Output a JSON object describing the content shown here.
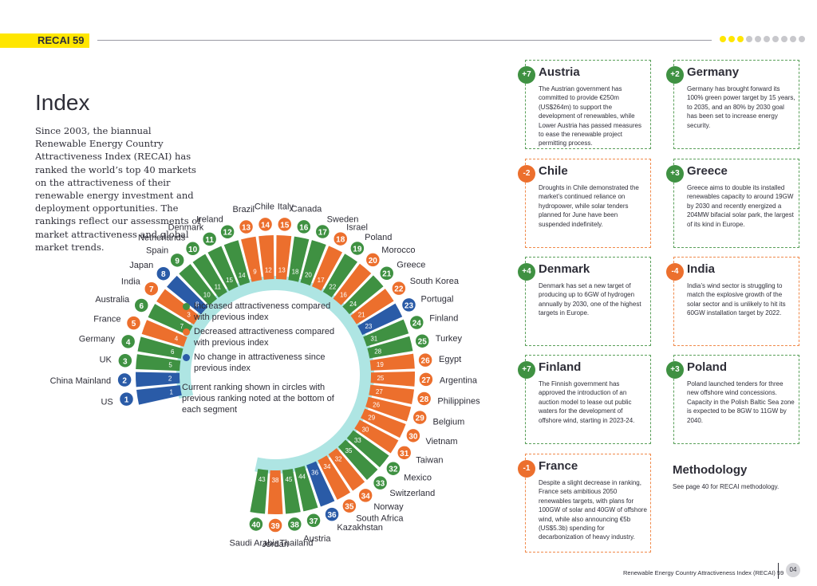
{
  "header": {
    "tag": "RECAI 59"
  },
  "page": {
    "title": "Index",
    "intro": "Since 2003, the biannual Renewable Energy Country Attractiveness Index (RECAI) has ranked the world’s top 40 markets on the attractiveness of their renewable energy investment and deployment opportunities. The rankings reflect our assessments of market attractiveness and global market trends."
  },
  "legend": {
    "increased": "Increased attractiveness compared with previous index",
    "decreased": "Decreased attractiveness compared with previous index",
    "nochange": "No change in attractiveness since previous index",
    "note": "Current ranking shown in circles with previous ranking noted at the bottom of each segment"
  },
  "colors": {
    "green": "#3f9142",
    "orange": "#ec6f2d",
    "blue": "#2a5ba7",
    "teal": "#aee5e3",
    "yellow": "#ffe600"
  },
  "ranking": [
    {
      "rank": 1,
      "country": "US",
      "prev": 1,
      "status": "blue"
    },
    {
      "rank": 2,
      "country": "China Mainland",
      "prev": 2,
      "status": "blue"
    },
    {
      "rank": 3,
      "country": "UK",
      "prev": 5,
      "status": "green"
    },
    {
      "rank": 4,
      "country": "Germany",
      "prev": 6,
      "status": "green"
    },
    {
      "rank": 5,
      "country": "France",
      "prev": 4,
      "status": "orange"
    },
    {
      "rank": 6,
      "country": "Australia",
      "prev": 7,
      "status": "green"
    },
    {
      "rank": 7,
      "country": "India",
      "prev": 3,
      "status": "orange"
    },
    {
      "rank": 8,
      "country": "Japan",
      "prev": 8,
      "status": "blue"
    },
    {
      "rank": 9,
      "country": "Spain",
      "prev": 10,
      "status": "green"
    },
    {
      "rank": 10,
      "country": "Netherlands",
      "prev": 11,
      "status": "green"
    },
    {
      "rank": 11,
      "country": "Denmark",
      "prev": 15,
      "status": "green"
    },
    {
      "rank": 12,
      "country": "Ireland",
      "prev": 14,
      "status": "green"
    },
    {
      "rank": 13,
      "country": "Brazil",
      "prev": 9,
      "status": "orange"
    },
    {
      "rank": 14,
      "country": "Chile",
      "prev": 12,
      "status": "orange"
    },
    {
      "rank": 15,
      "country": "Italy",
      "prev": 13,
      "status": "orange"
    },
    {
      "rank": 16,
      "country": "Canada",
      "prev": 18,
      "status": "green"
    },
    {
      "rank": 17,
      "country": "Sweden",
      "prev": 20,
      "status": "green"
    },
    {
      "rank": 18,
      "country": "Israel",
      "prev": 17,
      "status": "orange"
    },
    {
      "rank": 19,
      "country": "Poland",
      "prev": 22,
      "status": "green"
    },
    {
      "rank": 20,
      "country": "Morocco",
      "prev": 16,
      "status": "orange"
    },
    {
      "rank": 21,
      "country": "Greece",
      "prev": 24,
      "status": "green"
    },
    {
      "rank": 22,
      "country": "South Korea",
      "prev": 21,
      "status": "orange"
    },
    {
      "rank": 23,
      "country": "Portugal",
      "prev": 23,
      "status": "blue"
    },
    {
      "rank": 24,
      "country": "Finland",
      "prev": 31,
      "status": "green"
    },
    {
      "rank": 25,
      "country": "Turkey",
      "prev": 28,
      "status": "green"
    },
    {
      "rank": 26,
      "country": "Egypt",
      "prev": 19,
      "status": "orange"
    },
    {
      "rank": 27,
      "country": "Argentina",
      "prev": 25,
      "status": "orange"
    },
    {
      "rank": 28,
      "country": "Philippines",
      "prev": 27,
      "status": "orange"
    },
    {
      "rank": 29,
      "country": "Belgium",
      "prev": 26,
      "status": "orange"
    },
    {
      "rank": 30,
      "country": "Vietnam",
      "prev": 29,
      "status": "orange"
    },
    {
      "rank": 31,
      "country": "Taiwan",
      "prev": 30,
      "status": "orange"
    },
    {
      "rank": 32,
      "country": "Mexico",
      "prev": 33,
      "status": "green"
    },
    {
      "rank": 33,
      "country": "Switzerland",
      "prev": 35,
      "status": "green"
    },
    {
      "rank": 34,
      "country": "Norway",
      "prev": 32,
      "status": "orange"
    },
    {
      "rank": 35,
      "country": "South Africa",
      "prev": 34,
      "status": "orange"
    },
    {
      "rank": 36,
      "country": "Kazakhstan",
      "prev": 36,
      "status": "blue"
    },
    {
      "rank": 37,
      "country": "Austria",
      "prev": 44,
      "status": "green"
    },
    {
      "rank": 38,
      "country": "Thailand",
      "prev": 45,
      "status": "green"
    },
    {
      "rank": 39,
      "country": "Jordan",
      "prev": 38,
      "status": "orange"
    },
    {
      "rank": 40,
      "country": "Saudi Arabia",
      "prev": 43,
      "status": "green"
    }
  ],
  "cards": [
    {
      "change": "+7",
      "status": "green",
      "title": "Austria",
      "body": "The Austrian government has committed to provide €250m (US$264m) to support the development of renewables, while Lower Austria has passed measures to ease the renewable project permitting process."
    },
    {
      "change": "+2",
      "status": "green",
      "title": "Germany",
      "body": "Germany has brought forward its 100% green power target by 15 years, to 2035, and an 80% by 2030 goal has been set to increase energy security."
    },
    {
      "change": "-2",
      "status": "orange",
      "title": "Chile",
      "body": "Droughts in Chile demonstrated the market’s continued reliance on hydropower, while solar tenders planned for June have been suspended indefinitely."
    },
    {
      "change": "+3",
      "status": "green",
      "title": "Greece",
      "body": "Greece aims to double its installed renewables capacity to around 19GW by 2030 and recently energized a 204MW bifacial solar park, the largest of its kind in Europe."
    },
    {
      "change": "+4",
      "status": "green",
      "title": "Denmark",
      "body": "Denmark has set a new target of producing up to 6GW of hydrogen annually by 2030, one of the highest targets in Europe."
    },
    {
      "change": "-4",
      "status": "orange",
      "title": "India",
      "body": "India’s wind sector is struggling to match the explosive growth of the solar sector and is unlikely to hit its 60GW installation target by 2022."
    },
    {
      "change": "+7",
      "status": "green",
      "title": "Finland",
      "body": "The Finnish government has approved the introduction of an auction model to lease out public waters for the development of offshore wind, starting in 2023-24."
    },
    {
      "change": "+3",
      "status": "green",
      "title": "Poland",
      "body": "Poland launched tenders for three new offshore wind concessions. Capacity in the Polish Baltic Sea zone is expected to be 8GW to 11GW by 2040."
    },
    {
      "change": "-1",
      "status": "orange",
      "title": "France",
      "body": "Despite a slight decrease in ranking, France sets ambitious 2050 renewables targets, with plans for 100GW of solar and 40GW of offshore wind, while also announcing €5b (US$5.3b) spending for decarbonization of heavy industry."
    }
  ],
  "methodology": {
    "title": "Methodology",
    "body": "See page 40 for RECAI methodology."
  },
  "footer": {
    "text": "Renewable Energy Country Attractiveness Index (RECAI) 59",
    "page": "04"
  }
}
